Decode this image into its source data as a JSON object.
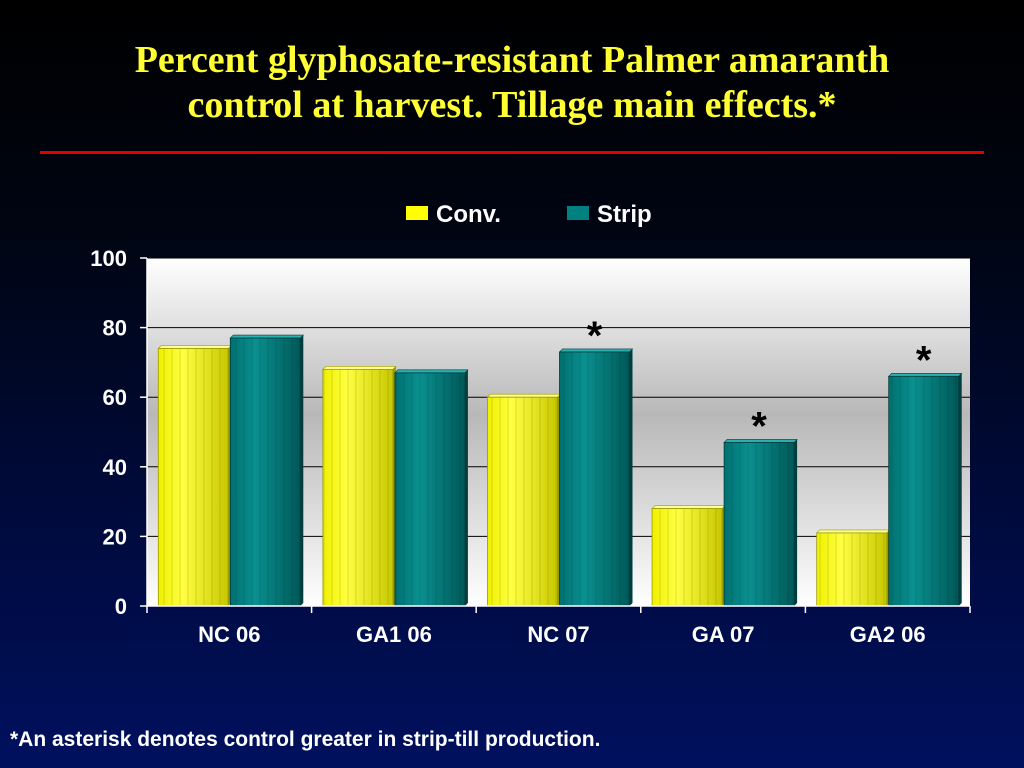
{
  "slide": {
    "title_lines": [
      "Percent glyphosate-resistant Palmer amaranth",
      "control at harvest.  Tillage main effects.*"
    ],
    "footnote": "*An asterisk denotes control greater in strip-till production."
  },
  "chart_data": {
    "type": "bar",
    "categories": [
      "NC 06",
      "GA1 06",
      "NC 07",
      "GA 07",
      "GA2 06"
    ],
    "series": [
      {
        "name": "Conv.",
        "values": [
          74,
          68,
          60,
          28,
          21
        ],
        "color": "#ffff00"
      },
      {
        "name": "Strip",
        "values": [
          77,
          67,
          73,
          47,
          66
        ],
        "color": "#008080"
      }
    ],
    "annotations": [
      {
        "category": "NC 07",
        "series": "Strip",
        "text": "*"
      },
      {
        "category": "GA 07",
        "series": "Strip",
        "text": "*"
      },
      {
        "category": "GA2 06",
        "series": "Strip",
        "text": "*"
      }
    ],
    "ylim": [
      0,
      100
    ],
    "yticks": [
      0,
      20,
      40,
      60,
      80,
      100
    ],
    "grid": true,
    "legend_position": "top-center"
  }
}
